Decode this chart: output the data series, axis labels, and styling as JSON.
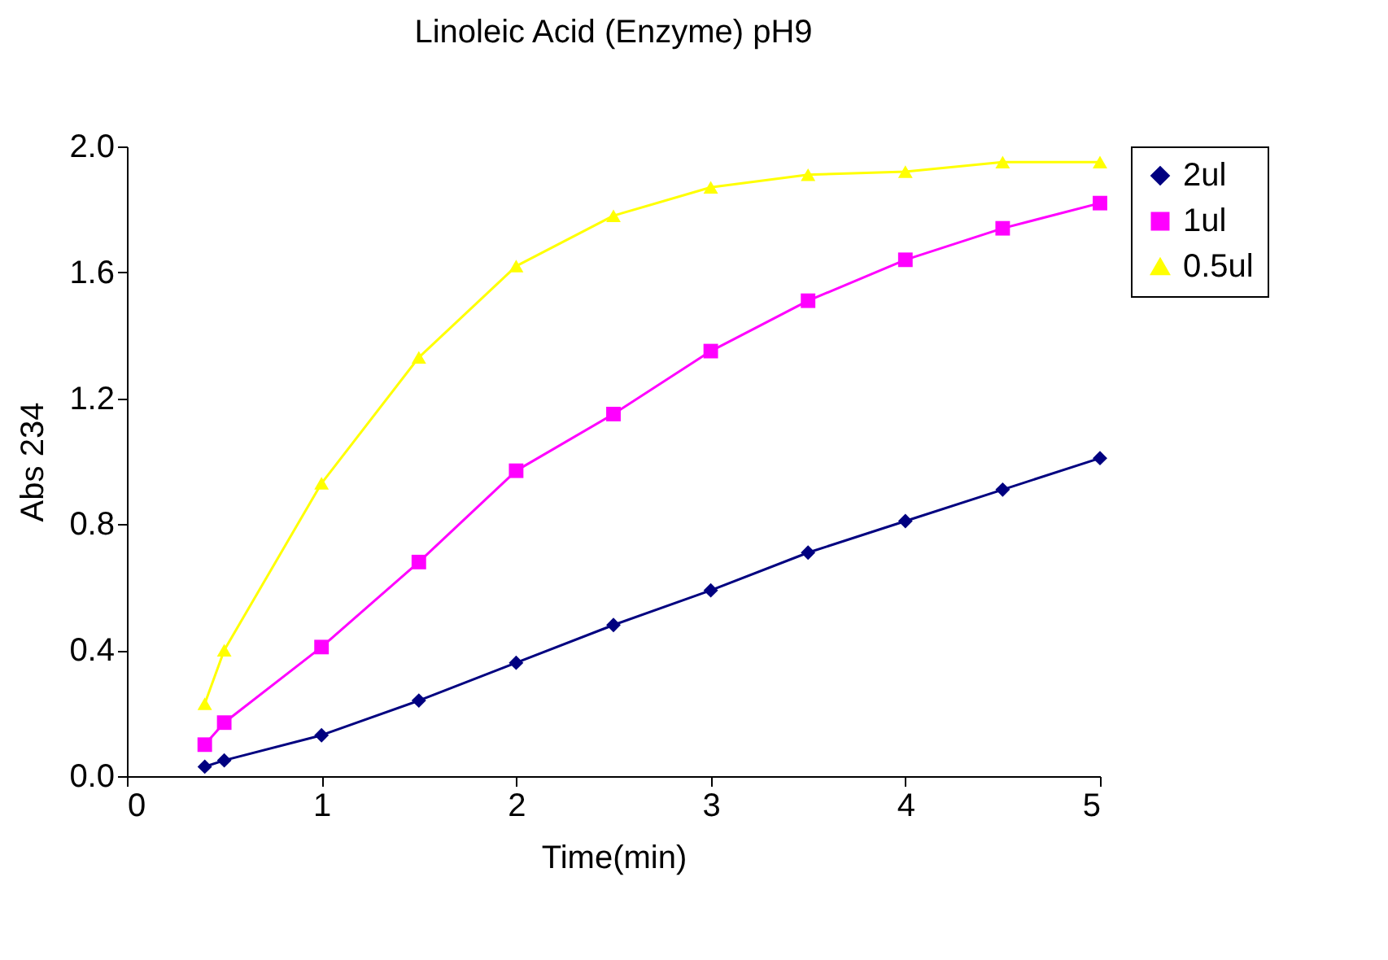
{
  "chart_data": {
    "type": "line",
    "title": "Linoleic Acid (Enzyme) pH9",
    "xlabel": "Time(min)",
    "ylabel": "Abs 234",
    "x": [
      0.4,
      0.5,
      1,
      1.5,
      2,
      2.5,
      3,
      3.5,
      4,
      4.5,
      5
    ],
    "series": [
      {
        "name": "2ul",
        "color": "#000080",
        "marker": "diamond",
        "values": [
          0.03,
          0.05,
          0.13,
          0.24,
          0.36,
          0.48,
          0.59,
          0.71,
          0.81,
          0.91,
          1.01
        ]
      },
      {
        "name": "1ul",
        "color": "#ff00ff",
        "marker": "square",
        "values": [
          0.1,
          0.17,
          0.41,
          0.68,
          0.97,
          1.15,
          1.35,
          1.51,
          1.64,
          1.74,
          1.82
        ]
      },
      {
        "name": "0.5ul",
        "color": "#ffff00",
        "marker": "triangle",
        "values": [
          0.23,
          0.4,
          0.93,
          1.33,
          1.62,
          1.78,
          1.87,
          1.91,
          1.92,
          1.95,
          1.95
        ]
      }
    ],
    "xlim": [
      0,
      5
    ],
    "xticks": [
      0,
      1,
      2,
      3,
      4,
      5
    ],
    "ylim": [
      0,
      2
    ],
    "yticks": [
      {
        "value": 0,
        "label": "0.0"
      },
      {
        "value": 0.4,
        "label": "0.4"
      },
      {
        "value": 0.8,
        "label": "0.8"
      },
      {
        "value": 1.2,
        "label": "1.2"
      },
      {
        "value": 1.6,
        "label": "1.6"
      },
      {
        "value": 2,
        "label": "2.0"
      }
    ],
    "grid": false,
    "legend": "right",
    "line_style": "solid"
  }
}
